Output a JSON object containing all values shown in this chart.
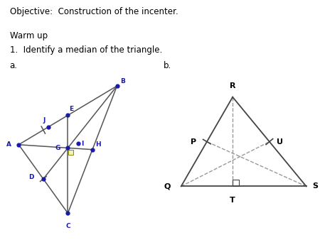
{
  "title_text": "Objective:  Construction of the incenter.",
  "warmup_text": "Warm up",
  "item1_text": "1.  Identify a median of the triangle.",
  "label_a": "a.",
  "label_b": "b.",
  "bg_color": "#ffffff",
  "text_color": "#000000",
  "blue_color": "#1a1aaa",
  "gray_color": "#555555",
  "dash_color": "#999999",
  "figsize": [
    4.5,
    3.38
  ],
  "dpi": 100
}
